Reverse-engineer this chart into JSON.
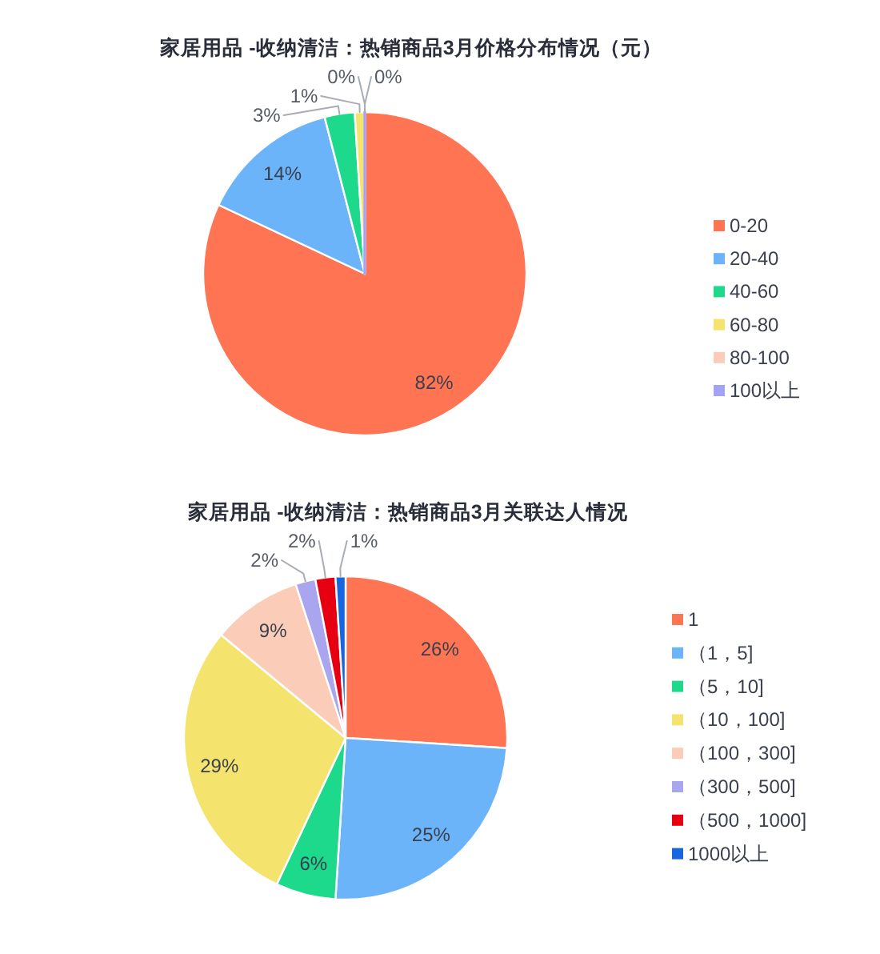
{
  "chart_data": [
    {
      "type": "pie",
      "title": "家居用品 -收纳清洁：热销商品3月价格分布情况（元）",
      "categories": [
        "0-20",
        "20-40",
        "40-60",
        "60-80",
        "80-100",
        "100以上"
      ],
      "values": [
        82,
        14,
        3,
        1,
        0,
        0
      ],
      "value_labels": [
        "82%",
        "14%",
        "3%",
        "1%",
        "0%",
        "0%"
      ],
      "colors": [
        "#ff7452",
        "#6cb4f9",
        "#1dd98c",
        "#f4e36c",
        "#fbcdb8",
        "#a3a3f5"
      ],
      "legend": "right"
    },
    {
      "type": "pie",
      "title": "家居用品 -收纳清洁：热销商品3月关联达人情况",
      "categories": [
        "1",
        "（1，5]",
        "（5，10]",
        "（10，100]",
        "（100，300]",
        "（300，500]",
        "（500，1000]",
        "1000以上"
      ],
      "values": [
        26,
        25,
        6,
        29,
        9,
        2,
        2,
        1
      ],
      "value_labels": [
        "26%",
        "25%",
        "6%",
        "29%",
        "9%",
        "2%",
        "2%",
        "1%"
      ],
      "colors": [
        "#ff7452",
        "#6cb4f9",
        "#1dd98c",
        "#f4e36c",
        "#fbcdb8",
        "#a9a6ef",
        "#e60012",
        "#1766e0"
      ],
      "legend": "right"
    }
  ]
}
